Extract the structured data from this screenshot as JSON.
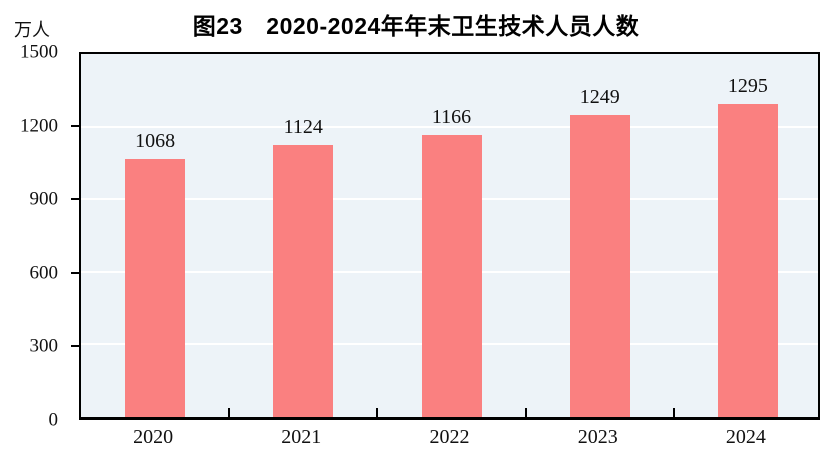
{
  "chart_data": {
    "type": "bar",
    "title": "图23　2020-2024年年末卫生技术人员人数",
    "unit_label": "万人",
    "categories": [
      "2020",
      "2021",
      "2022",
      "2023",
      "2024"
    ],
    "values": [
      1068,
      1124,
      1166,
      1249,
      1295
    ],
    "ylim": [
      0,
      1500
    ],
    "yticks": [
      0,
      300,
      600,
      900,
      1200,
      1500
    ],
    "grid": true,
    "legend": "none",
    "bar_color": "#FA8080",
    "plot_bg_color": "#EDF3F8",
    "grid_color": "#FFFFFF",
    "axis_color": "#000000",
    "text_color": "#111111"
  }
}
